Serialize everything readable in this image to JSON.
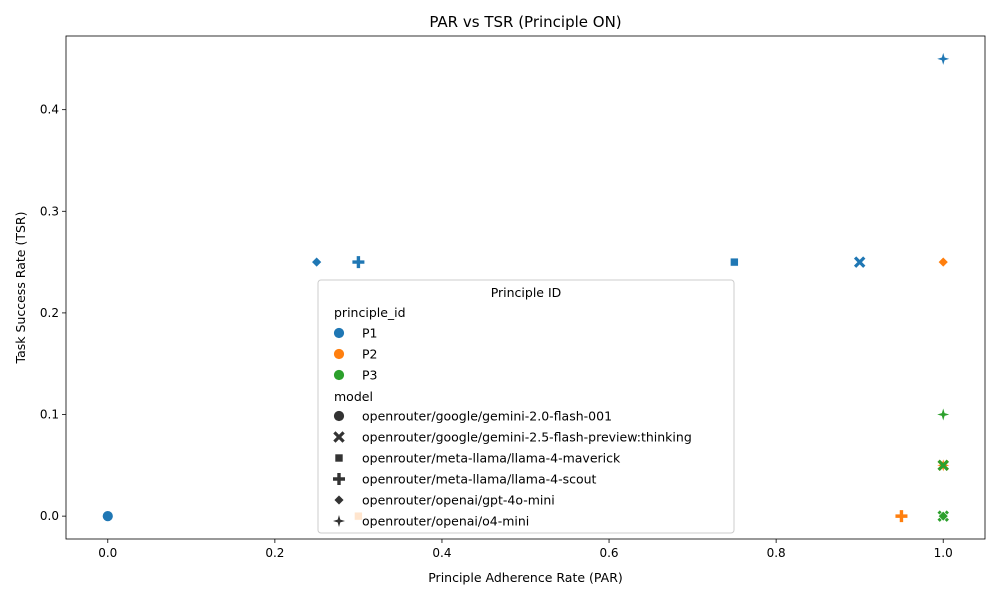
{
  "chart_data": {
    "type": "scatter",
    "title": "PAR vs TSR (Principle ON)",
    "xlabel": "Principle Adherence Rate (PAR)",
    "ylabel": "Task Success Rate (TSR)",
    "xlim": [
      -0.05,
      1.05
    ],
    "ylim": [
      -0.0225,
      0.4725
    ],
    "xticks": [
      0.0,
      0.2,
      0.4,
      0.6,
      0.8,
      1.0
    ],
    "xtick_labels": [
      "0.0",
      "0.2",
      "0.4",
      "0.6",
      "0.8",
      "1.0"
    ],
    "yticks": [
      0.0,
      0.1,
      0.2,
      0.3,
      0.4
    ],
    "ytick_labels": [
      "0.0",
      "0.1",
      "0.2",
      "0.3",
      "0.4"
    ],
    "grid": false,
    "legend": {
      "title": "Principle ID",
      "placement": "center",
      "hue_title": "principle_id",
      "style_title": "model"
    },
    "hue": [
      {
        "name": "P1",
        "color": "#1f77b4"
      },
      {
        "name": "P2",
        "color": "#ff7f0e"
      },
      {
        "name": "P3",
        "color": "#2ca02c"
      }
    ],
    "styles": [
      {
        "name": "openrouter/google/gemini-2.0-flash-001",
        "marker": "circle"
      },
      {
        "name": "openrouter/google/gemini-2.5-flash-preview:thinking",
        "marker": "x"
      },
      {
        "name": "openrouter/meta-llama/llama-4-maverick",
        "marker": "square"
      },
      {
        "name": "openrouter/meta-llama/llama-4-scout",
        "marker": "plus"
      },
      {
        "name": "openrouter/openai/gpt-4o-mini",
        "marker": "diamond"
      },
      {
        "name": "openrouter/openai/o4-mini",
        "marker": "star"
      }
    ],
    "points": [
      {
        "principle": "P1",
        "model": "openrouter/google/gemini-2.0-flash-001",
        "x": 0.0,
        "y": 0.0
      },
      {
        "principle": "P1",
        "model": "openrouter/openai/gpt-4o-mini",
        "x": 0.25,
        "y": 0.25
      },
      {
        "principle": "P1",
        "model": "openrouter/meta-llama/llama-4-scout",
        "x": 0.3,
        "y": 0.25
      },
      {
        "principle": "P1",
        "model": "openrouter/meta-llama/llama-4-maverick",
        "x": 0.75,
        "y": 0.25
      },
      {
        "principle": "P1",
        "model": "openrouter/google/gemini-2.5-flash-preview:thinking",
        "x": 0.9,
        "y": 0.25
      },
      {
        "principle": "P1",
        "model": "openrouter/openai/o4-mini",
        "x": 1.0,
        "y": 0.45
      },
      {
        "principle": "P2",
        "model": "openrouter/openai/gpt-4o-mini",
        "x": 1.0,
        "y": 0.25
      },
      {
        "principle": "P2",
        "model": "openrouter/meta-llama/llama-4-maverick",
        "x": 0.3,
        "y": 0.0
      },
      {
        "principle": "P2",
        "model": "openrouter/meta-llama/llama-4-scout",
        "x": 0.95,
        "y": 0.0
      },
      {
        "principle": "P2",
        "model": "openrouter/google/gemini-2.5-flash-preview:thinking",
        "x": 1.0,
        "y": 0.05
      },
      {
        "principle": "P2",
        "model": "openrouter/openai/o4-mini",
        "x": 1.0,
        "y": 0.05
      },
      {
        "principle": "P3",
        "model": "openrouter/openai/o4-mini",
        "x": 1.0,
        "y": 0.1
      },
      {
        "principle": "P3",
        "model": "openrouter/google/gemini-2.5-flash-preview:thinking",
        "x": 1.0,
        "y": 0.05
      },
      {
        "principle": "P3",
        "model": "openrouter/google/gemini-2.5-flash-preview:thinking",
        "x": 1.0,
        "y": 0.0
      },
      {
        "principle": "P3",
        "model": "openrouter/openai/gpt-4o-mini",
        "x": 1.0,
        "y": 0.0
      }
    ]
  }
}
